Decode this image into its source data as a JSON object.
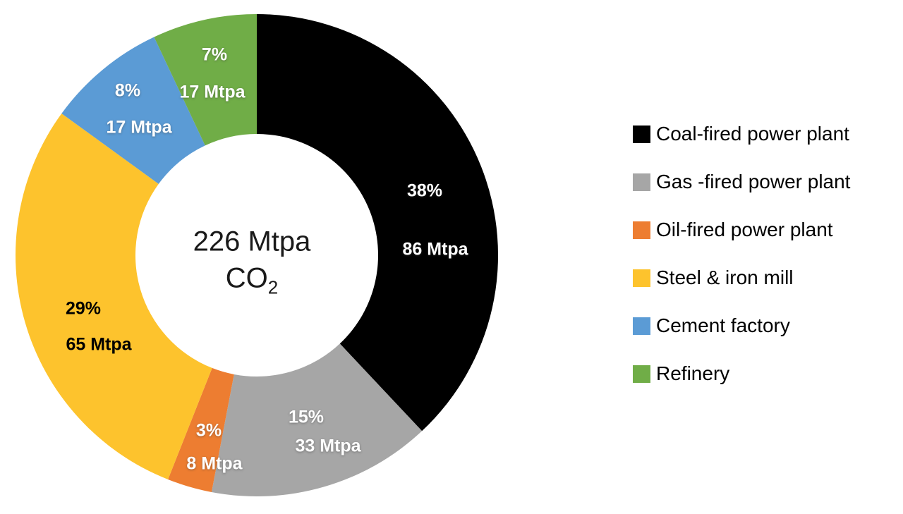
{
  "chart_data": {
    "type": "pie",
    "variant": "donut",
    "title": "",
    "legend_position": "right",
    "start_angle_deg": 0,
    "direction": "clockwise",
    "unit": "Mtpa",
    "total_mtpa": 226,
    "center_label": {
      "line1": "226 Mtpa",
      "formula_base": "CO",
      "formula_sub": "2"
    },
    "series": [
      {
        "label": "Coal-fired power plant",
        "pct": 38,
        "value_mtpa": 86,
        "pct_label": "38%",
        "value_label": "86 Mtpa",
        "color": "#000000",
        "label_color": "#ffffff"
      },
      {
        "label": "Gas -fired power plant",
        "pct": 15,
        "value_mtpa": 33,
        "pct_label": "15%",
        "value_label": "33 Mtpa",
        "color": "#A6A6A6",
        "label_color": "#ffffff"
      },
      {
        "label": "Oil-fired power plant",
        "pct": 3,
        "value_mtpa": 8,
        "pct_label": "3%",
        "value_label": "8 Mtpa",
        "color": "#ED7D31",
        "label_color": "#ffffff"
      },
      {
        "label": "Steel & iron mill",
        "pct": 29,
        "value_mtpa": 65,
        "pct_label": "29%",
        "value_label": "65 Mtpa",
        "color": "#FDC32D",
        "label_color": "#000000"
      },
      {
        "label": "Cement factory",
        "pct": 8,
        "value_mtpa": 17,
        "pct_label": "8%",
        "value_label": "17 Mtpa",
        "color": "#5B9BD5",
        "label_color": "#ffffff"
      },
      {
        "label": "Refinery",
        "pct": 7,
        "value_mtpa": 17,
        "pct_label": "7%",
        "value_label": "17 Mtpa",
        "color": "#70AD47",
        "label_color": "#ffffff"
      }
    ]
  }
}
